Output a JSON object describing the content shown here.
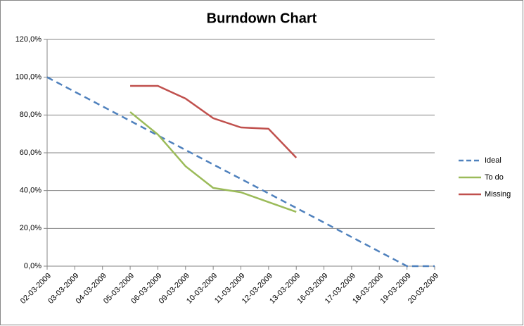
{
  "chart_data": {
    "type": "line",
    "title": "Burndown Chart",
    "categories": [
      "02-03-2009",
      "03-03-2009",
      "04-03-2009",
      "05-03-2009",
      "06-03-2009",
      "09-03-2009",
      "10-03-2009",
      "11-03-2009",
      "12-03-2009",
      "13-03-2009",
      "16-03-2009",
      "17-03-2009",
      "18-03-2009",
      "19-03-2009",
      "20-03-2009"
    ],
    "series": [
      {
        "name": "Ideal",
        "color": "#4f81bd",
        "dashed": true,
        "values": [
          100,
          92.3,
          84.6,
          76.9,
          69.2,
          61.5,
          53.8,
          46.2,
          38.5,
          30.8,
          23.1,
          15.4,
          7.7,
          0,
          0
        ]
      },
      {
        "name": "To do",
        "color": "#9bbb59",
        "dashed": false,
        "values": [
          null,
          null,
          null,
          81.6,
          69.7,
          52.9,
          41.4,
          39.1,
          33.9,
          28.7,
          null,
          null,
          null,
          null,
          null
        ]
      },
      {
        "name": "Missing",
        "color": "#c0504d",
        "dashed": false,
        "values": [
          null,
          null,
          null,
          95.4,
          95.4,
          88.7,
          78.3,
          73.4,
          72.7,
          57.4,
          null,
          null,
          null,
          null,
          null
        ]
      }
    ],
    "ylim": [
      0,
      120
    ],
    "yticks": [
      {
        "value": 0,
        "label": "0,0%"
      },
      {
        "value": 20,
        "label": "20,0%"
      },
      {
        "value": 40,
        "label": "40,0%"
      },
      {
        "value": 60,
        "label": "60,0%"
      },
      {
        "value": 80,
        "label": "80,0%"
      },
      {
        "value": 100,
        "label": "100,0%"
      },
      {
        "value": 120,
        "label": "120,0%"
      }
    ],
    "grid": true,
    "legend": "right"
  }
}
